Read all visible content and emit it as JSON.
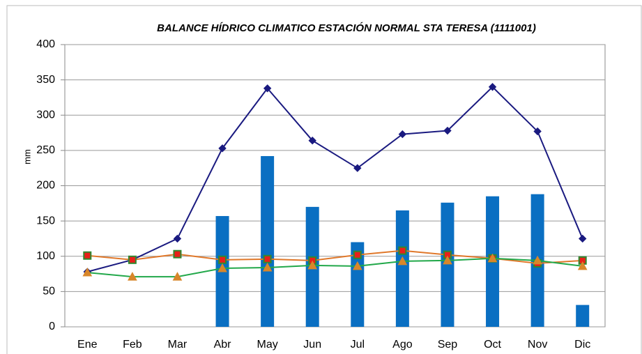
{
  "chart_data": {
    "type": "combo",
    "title": "BALANCE HÍDRICO CLIMATICO ESTACIÓN NORMAL STA TERESA (1111001)",
    "y_label": "mm",
    "categories": [
      "Ene",
      "Feb",
      "Mar",
      "Abr",
      "May",
      "Jun",
      "Jul",
      "Ago",
      "Sep",
      "Oct",
      "Nov",
      "Dic"
    ],
    "series": [
      {
        "type": "bar",
        "color": "#0a6fc2",
        "values": [
          0,
          0,
          0,
          157,
          242,
          170,
          120,
          165,
          176,
          185,
          188,
          31
        ]
      },
      {
        "type": "line",
        "color": "#1a1a80",
        "marker": "diamond",
        "marker_color": "#1a1a80",
        "values": [
          78,
          95,
          125,
          253,
          338,
          264,
          225,
          273,
          278,
          340,
          277,
          125
        ]
      },
      {
        "type": "line",
        "color": "#e0782a",
        "marker": "square",
        "marker_color": "#e8201a",
        "marker_edge": "#2f8a2f",
        "values": [
          101,
          95,
          103,
          95,
          96,
          94,
          102,
          108,
          102,
          97,
          90,
          94
        ]
      },
      {
        "type": "line",
        "color": "#22a84a",
        "marker": "triangle",
        "marker_color": "#d8872a",
        "values": [
          77,
          71,
          71,
          83,
          84,
          87,
          86,
          93,
          94,
          97,
          94,
          86
        ]
      }
    ],
    "ylim": [
      0,
      400
    ],
    "yticks": [
      0,
      50,
      100,
      150,
      200,
      250,
      300,
      350,
      400
    ],
    "grid": true
  }
}
